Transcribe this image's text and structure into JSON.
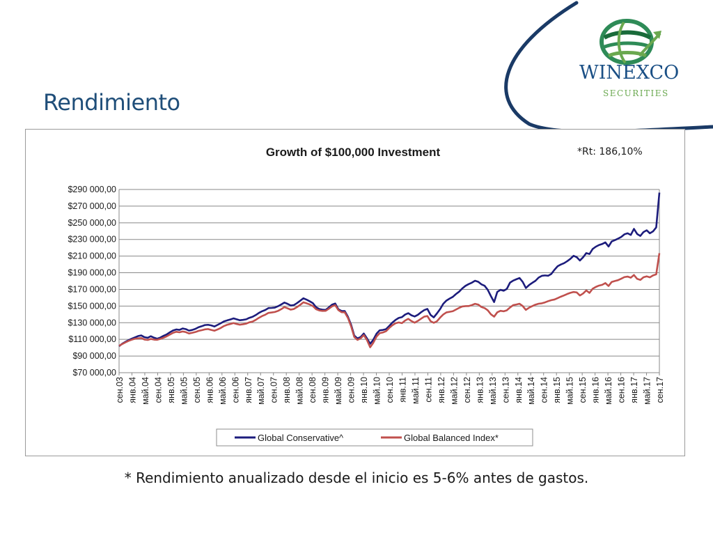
{
  "slide": {
    "title": "Rendimiento",
    "footnote": "* Rendimiento anualizado desde el inicio es 5-6% antes de gastos."
  },
  "logo": {
    "name": "WINEXCO",
    "subtitle": "SECURITIES",
    "colors": {
      "globe": "#2e8b57",
      "text": "#1a4f85",
      "accent": "#6aa84f"
    }
  },
  "chart_data": {
    "type": "line",
    "title": "Growth of $100,000 Investment",
    "annotation": "*Rt: 186,10%",
    "xlabel": "",
    "ylabel": "",
    "ylim": [
      70000,
      290000
    ],
    "y_ticks": [
      70000,
      90000,
      110000,
      130000,
      150000,
      170000,
      190000,
      210000,
      230000,
      250000,
      270000,
      290000
    ],
    "y_tick_labels": [
      "$70 000,00",
      "$90 000,00",
      "$110 000,00",
      "$130 000,00",
      "$150 000,00",
      "$170 000,00",
      "$190 000,00",
      "$210 000,00",
      "$230 000,00",
      "$250 000,00",
      "$270 000,00",
      "$290 000,00"
    ],
    "x_tick_labels": [
      "сен.03",
      "янв.04",
      "май.04",
      "сен.04",
      "янв.05",
      "май.05",
      "сен.05",
      "янв.06",
      "май.06",
      "сен.06",
      "янв.07",
      "май.07",
      "сен.07",
      "янв.08",
      "май.08",
      "сен.08",
      "янв.09",
      "май.09",
      "сен.09",
      "янв.10",
      "май.10",
      "сен.10",
      "янв.11",
      "май.11",
      "сен.11",
      "янв.12",
      "май.12",
      "сен.12",
      "янв.13",
      "май.13",
      "сен.13",
      "янв.14",
      "май.14",
      "сен.14",
      "янв.15",
      "май.15",
      "сен.15",
      "янв.16",
      "май.16",
      "сен.16",
      "янв.17",
      "май.17",
      "сен.17"
    ],
    "grid": "horizontal",
    "legend_position": "bottom",
    "series": [
      {
        "name": "Global Conservative^",
        "color": "#1c1c7c",
        "values": [
          101800,
          104800,
          107000,
          109100,
          110800,
          112400,
          114000,
          114700,
          112600,
          111900,
          113800,
          112000,
          110800,
          112200,
          114300,
          116000,
          118500,
          120700,
          121900,
          121400,
          123100,
          122300,
          120500,
          121300,
          122600,
          124600,
          125800,
          127200,
          127500,
          126800,
          125500,
          127400,
          129400,
          131600,
          132800,
          133900,
          135200,
          134100,
          133000,
          133400,
          134100,
          135900,
          137100,
          139200,
          141800,
          143800,
          145300,
          147600,
          147800,
          148200,
          149800,
          151900,
          154200,
          152700,
          150700,
          151200,
          153600,
          156400,
          159400,
          157700,
          155700,
          153400,
          148600,
          146400,
          145700,
          145400,
          148400,
          151700,
          153100,
          146100,
          144100,
          144000,
          137200,
          127600,
          114600,
          111100,
          112800,
          117000,
          111200,
          104700,
          109600,
          116800,
          120900,
          121300,
          122300,
          126100,
          130200,
          133400,
          135800,
          136700,
          139800,
          141500,
          138900,
          137500,
          139500,
          142500,
          145100,
          146600,
          139400,
          136400,
          141100,
          146300,
          152700,
          156600,
          159000,
          161000,
          164400,
          167300,
          171200,
          174300,
          176400,
          178100,
          180400,
          179200,
          176100,
          174400,
          169500,
          161900,
          154800,
          167000,
          169500,
          168400,
          170600,
          178100,
          180600,
          182200,
          183700,
          179000,
          171700,
          175200,
          177900,
          180300,
          184200,
          186300,
          186800,
          186400,
          188600,
          193600,
          197900,
          199900,
          201500,
          203900,
          206700,
          210400,
          208700,
          204700,
          208600,
          213600,
          212500,
          218500,
          221300,
          223300,
          224500,
          226500,
          221500,
          227600,
          229200,
          231000,
          233000,
          236200,
          237400,
          235400,
          242700,
          236600,
          234200,
          238900,
          241000,
          237400,
          239700,
          244500,
          286200
        ]
      },
      {
        "name": "Global Balanced Index*",
        "color": "#c0504d",
        "values": [
          102300,
          104400,
          106400,
          108200,
          109600,
          110800,
          111300,
          111600,
          109800,
          109300,
          110500,
          109700,
          109500,
          110600,
          112000,
          113700,
          115800,
          117900,
          119100,
          118500,
          119500,
          118700,
          117100,
          117900,
          118800,
          120200,
          121000,
          122000,
          122400,
          121300,
          120400,
          121900,
          123700,
          126000,
          127500,
          128500,
          129600,
          128500,
          127600,
          128200,
          128900,
          130500,
          131400,
          133400,
          135900,
          138000,
          139600,
          141800,
          142300,
          142900,
          144200,
          146200,
          148800,
          147300,
          145700,
          146500,
          148800,
          151500,
          154500,
          153300,
          151900,
          149900,
          146200,
          144700,
          144200,
          144300,
          146800,
          149600,
          151100,
          145100,
          142600,
          142500,
          135800,
          125800,
          112900,
          109400,
          111200,
          115100,
          109200,
          100500,
          106000,
          113300,
          117500,
          118300,
          119800,
          123700,
          127000,
          129400,
          130300,
          129500,
          132600,
          134700,
          132000,
          130000,
          132200,
          134800,
          137300,
          138000,
          131900,
          129900,
          131700,
          136100,
          139900,
          142400,
          143100,
          143800,
          145800,
          147900,
          149500,
          149900,
          150000,
          151200,
          152700,
          151800,
          148900,
          147600,
          144900,
          140100,
          137300,
          142500,
          144300,
          143700,
          144900,
          148300,
          151100,
          151900,
          152800,
          150000,
          145400,
          148100,
          149900,
          151700,
          152800,
          153300,
          154400,
          155900,
          157100,
          157900,
          159600,
          161300,
          162800,
          164500,
          165900,
          166900,
          166400,
          162700,
          165100,
          168800,
          165800,
          170800,
          173000,
          174600,
          175500,
          177600,
          174100,
          179000,
          180100,
          181100,
          182900,
          184800,
          185400,
          184100,
          187300,
          182700,
          181400,
          184600,
          185700,
          184500,
          186800,
          188100,
          213500
        ]
      }
    ]
  }
}
